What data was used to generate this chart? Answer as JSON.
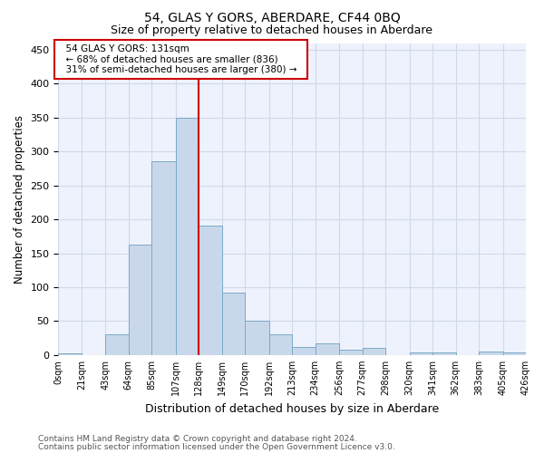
{
  "title": "54, GLAS Y GORS, ABERDARE, CF44 0BQ",
  "subtitle": "Size of property relative to detached houses in Aberdare",
  "xlabel": "Distribution of detached houses by size in Aberdare",
  "ylabel": "Number of detached properties",
  "annotation_line1": "54 GLAS Y GORS: 131sqm",
  "annotation_line2": "← 68% of detached houses are smaller (836)",
  "annotation_line3": "31% of semi-detached houses are larger (380) →",
  "bar_color": "#c8d8ea",
  "bar_edge_color": "#7aaac8",
  "vline_color": "#cc0000",
  "vline_x": 128,
  "bin_edges": [
    0,
    21,
    43,
    64,
    85,
    107,
    128,
    149,
    170,
    192,
    213,
    234,
    256,
    277,
    298,
    320,
    341,
    362,
    383,
    405,
    426
  ],
  "bin_counts": [
    3,
    0,
    30,
    163,
    286,
    350,
    191,
    92,
    50,
    30,
    12,
    17,
    8,
    10,
    0,
    4,
    4,
    0,
    5,
    4
  ],
  "tick_labels": [
    "0sqm",
    "21sqm",
    "43sqm",
    "64sqm",
    "85sqm",
    "107sqm",
    "128sqm",
    "149sqm",
    "170sqm",
    "192sqm",
    "213sqm",
    "234sqm",
    "256sqm",
    "277sqm",
    "298sqm",
    "320sqm",
    "341sqm",
    "362sqm",
    "383sqm",
    "405sqm",
    "426sqm"
  ],
  "ylim": [
    0,
    460
  ],
  "yticks": [
    0,
    50,
    100,
    150,
    200,
    250,
    300,
    350,
    400,
    450
  ],
  "grid_color": "#d0d8ea",
  "background_color": "#eef2fc",
  "footer_line1": "Contains HM Land Registry data © Crown copyright and database right 2024.",
  "footer_line2": "Contains public sector information licensed under the Open Government Licence v3.0.",
  "title_fontsize": 10,
  "subtitle_fontsize": 9
}
